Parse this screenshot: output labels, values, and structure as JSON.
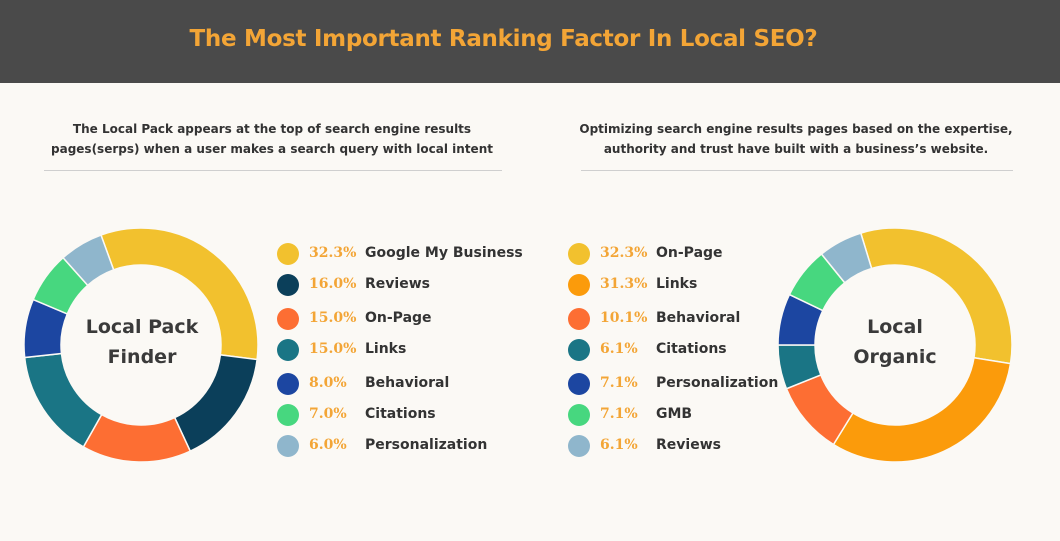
{
  "title": "The Most Important Ranking Factor In Local SEO?",
  "left": {
    "description_line1": "The Local Pack appears at the top of search engine results",
    "description_line2": "pages(serps) when a user makes a search query with local intent",
    "center_line1": "Local Pack",
    "center_line2": "Finder"
  },
  "right": {
    "description_line1": "Optimizing search engine results pages based on the expertise,",
    "description_line2": "authority and trust have built with a business’s website.",
    "center_line1": "Local",
    "center_line2": "Organic"
  },
  "chart_data": [
    {
      "type": "pie",
      "title": "Local Pack Finder",
      "categories": [
        "Google My Business",
        "Reviews",
        "On-Page",
        "Links",
        "Behavioral",
        "Citations",
        "Personalization"
      ],
      "values": [
        32.3,
        16.0,
        15.0,
        15.0,
        8.0,
        7.0,
        6.0
      ],
      "labels": [
        "32.3%",
        "16.0%",
        "15.0%",
        "15.0%",
        "8.0%",
        "7.0%",
        "6.0%"
      ],
      "colors": [
        "#f2c12e",
        "#0b3f5a",
        "#fd6e33",
        "#1a7585",
        "#1c46a1",
        "#47d77f",
        "#8fb6cc"
      ]
    },
    {
      "type": "pie",
      "title": "Local Organic",
      "categories": [
        "On-Page",
        "Links",
        "Behavioral",
        "Citations",
        "Personalization",
        "GMB",
        "Reviews"
      ],
      "values": [
        32.3,
        31.3,
        10.1,
        6.1,
        7.1,
        7.1,
        6.1
      ],
      "labels": [
        "32.3%",
        "31.3%",
        "10.1%",
        "6.1%",
        "7.1%",
        "7.1%",
        "6.1%"
      ],
      "colors": [
        "#f2c12e",
        "#fb9b0b",
        "#fd6e33",
        "#1a7585",
        "#1c46a1",
        "#47d77f",
        "#8fb6cc"
      ]
    }
  ]
}
